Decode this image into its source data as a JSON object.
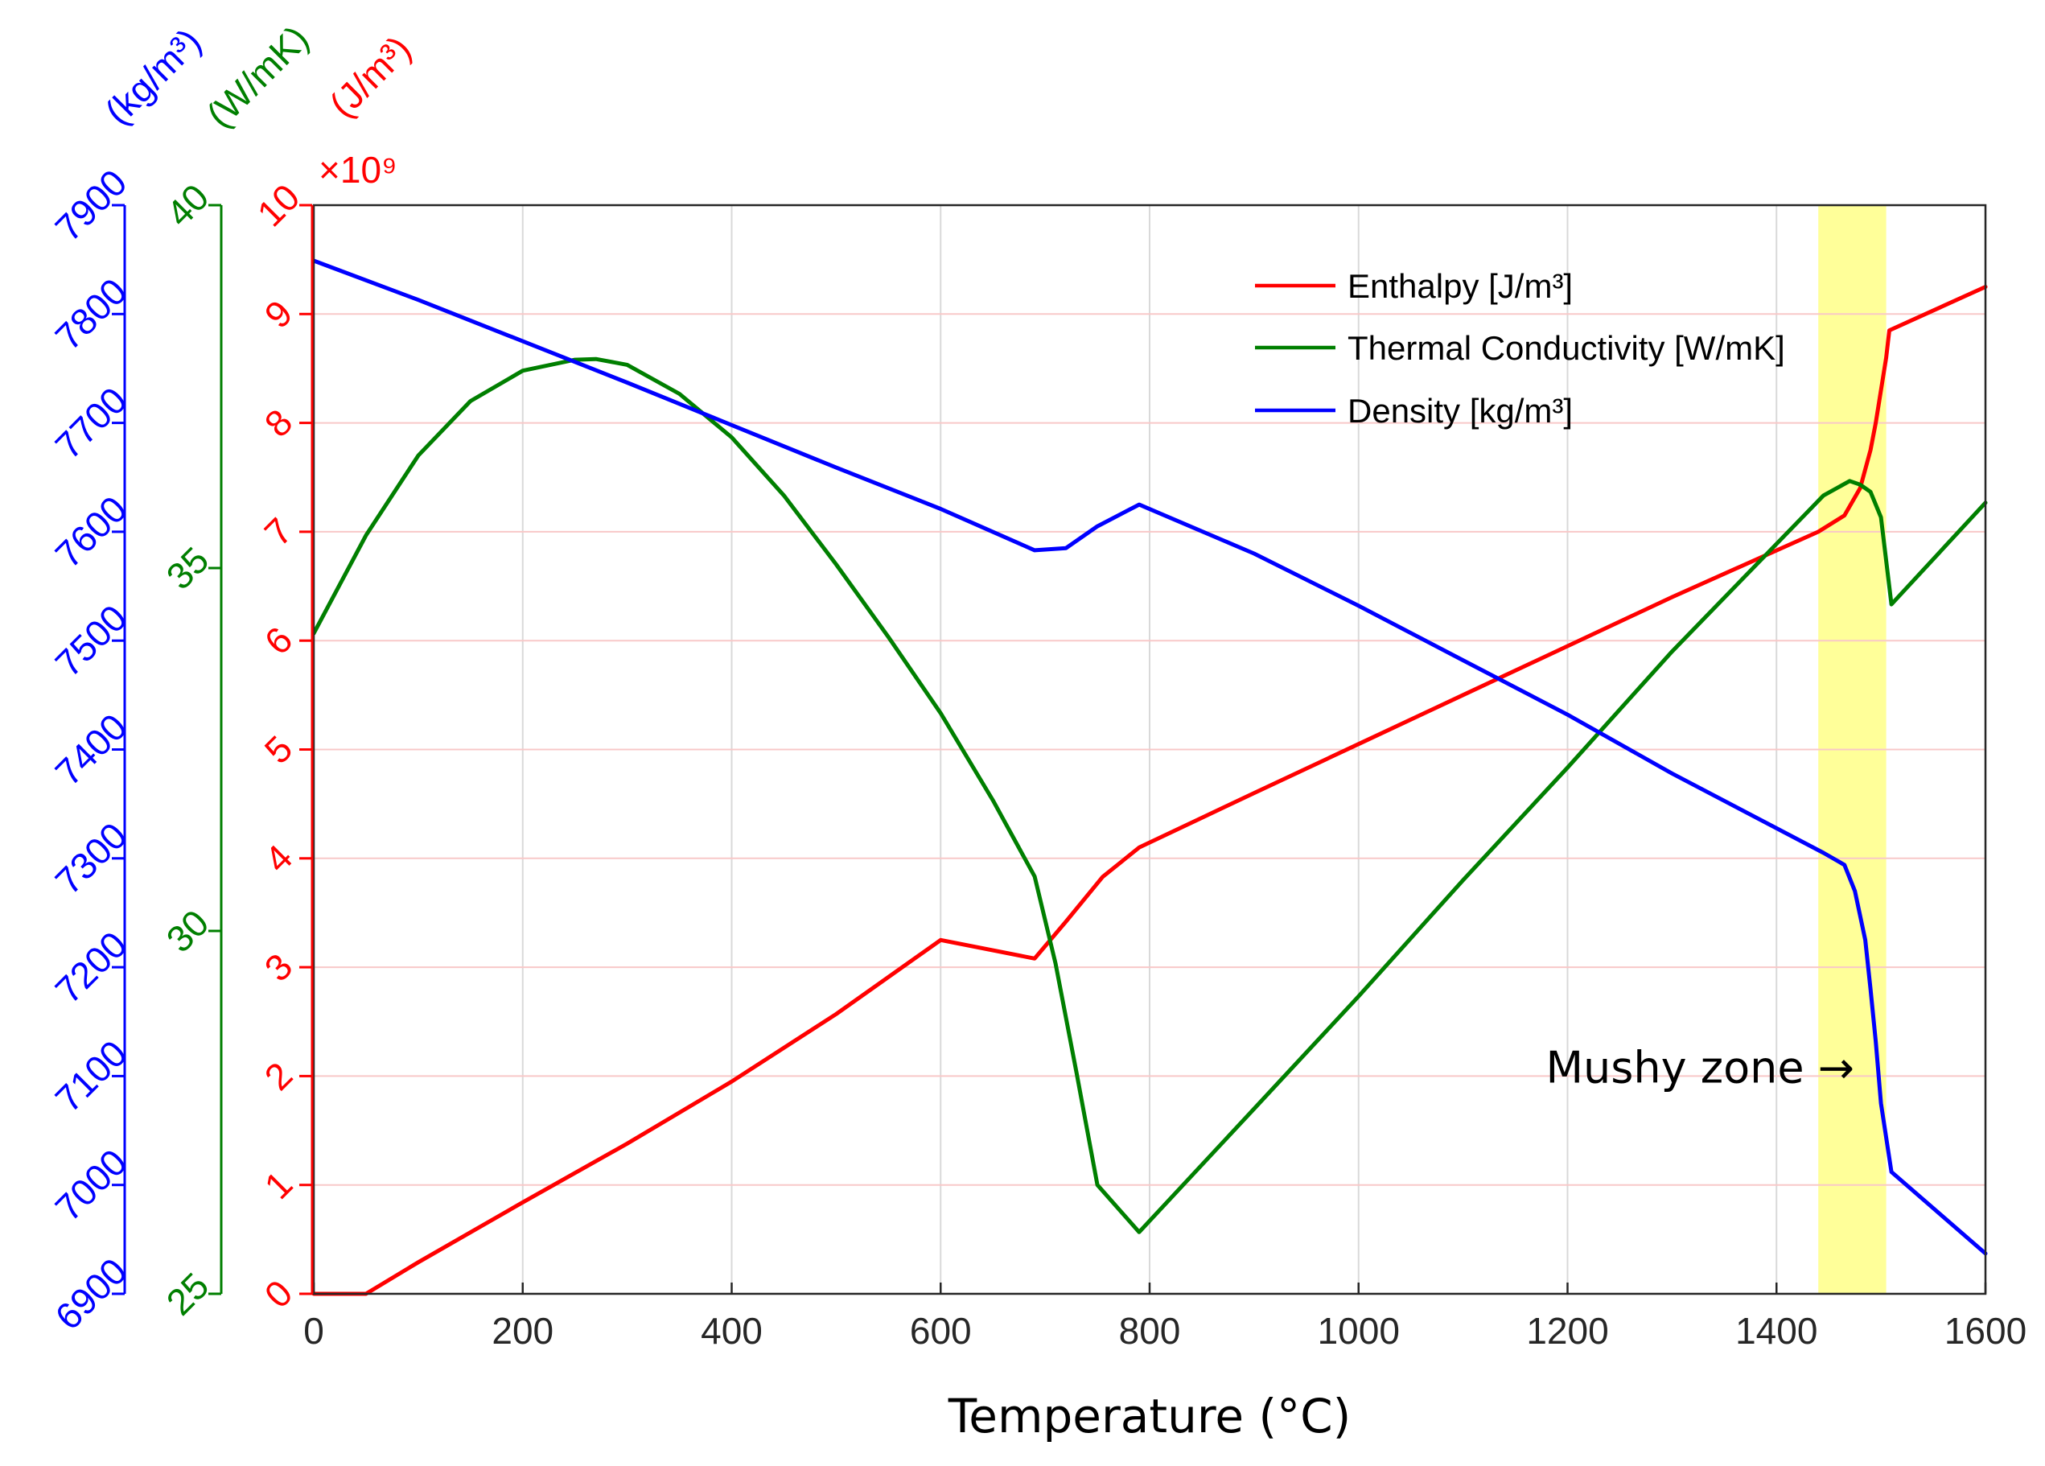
{
  "chart_data": {
    "type": "line",
    "title": "",
    "xlabel": "Temperature (°C)",
    "xlim": [
      0,
      1600
    ],
    "x_ticks": [
      0,
      200,
      400,
      600,
      800,
      1000,
      1200,
      1400,
      1600
    ],
    "grid": true,
    "axes": [
      {
        "id": "density",
        "unit_label": "(kg/m³)",
        "color": "#0000ff",
        "ylim": [
          6900,
          7900
        ],
        "ticks": [
          6900,
          7000,
          7100,
          7200,
          7300,
          7400,
          7500,
          7600,
          7700,
          7800,
          7900
        ]
      },
      {
        "id": "conductivity",
        "unit_label": "(W/mK)",
        "color": "#007f00",
        "ylim": [
          25,
          40
        ],
        "ticks": [
          25,
          30,
          35,
          40
        ]
      },
      {
        "id": "enthalpy",
        "unit_label": "(J/m³)",
        "exponent_label": "×10⁹",
        "color": "#ff0000",
        "ylim": [
          0,
          10
        ],
        "ticks": [
          0,
          1,
          2,
          3,
          4,
          5,
          6,
          7,
          8,
          9,
          10
        ]
      }
    ],
    "series": [
      {
        "name": "Enthalpy [J/m³]",
        "axis": "enthalpy",
        "color": "#ff0000",
        "x": [
          0,
          50,
          100,
          200,
          300,
          400,
          500,
          600,
          690,
          720,
          755,
          790,
          900,
          1000,
          1100,
          1200,
          1300,
          1440,
          1465,
          1480,
          1490,
          1495,
          1500,
          1505,
          1508,
          1600
        ],
        "y": [
          0,
          0,
          0.29,
          0.84,
          1.38,
          1.95,
          2.57,
          3.25,
          3.08,
          3.42,
          3.83,
          4.1,
          4.6,
          5.05,
          5.5,
          5.95,
          6.4,
          7.0,
          7.15,
          7.4,
          7.75,
          8.0,
          8.3,
          8.6,
          8.85,
          9.25
        ]
      },
      {
        "name": "Thermal Conductivity [W/mK]",
        "axis": "conductivity",
        "color": "#007f00",
        "x": [
          0,
          50,
          100,
          150,
          200,
          250,
          270,
          300,
          350,
          400,
          450,
          500,
          550,
          600,
          650,
          690,
          710,
          730,
          750,
          790,
          900,
          1000,
          1100,
          1200,
          1300,
          1445,
          1470,
          1480,
          1490,
          1500,
          1510,
          1600
        ],
        "y": [
          34.1,
          35.45,
          36.55,
          37.3,
          37.72,
          37.87,
          37.88,
          37.8,
          37.4,
          36.8,
          36.0,
          35.05,
          34.05,
          33.0,
          31.8,
          30.75,
          29.55,
          28.05,
          26.5,
          25.85,
          27.55,
          29.1,
          30.7,
          32.25,
          33.85,
          36.0,
          36.2,
          36.15,
          36.05,
          35.7,
          34.5,
          35.9
        ]
      },
      {
        "name": "Density [kg/m³]",
        "axis": "density",
        "color": "#0000ff",
        "x": [
          0,
          100,
          200,
          300,
          400,
          500,
          600,
          690,
          720,
          750,
          790,
          900,
          1000,
          1100,
          1200,
          1300,
          1445,
          1465,
          1475,
          1485,
          1490,
          1495,
          1500,
          1510,
          1600
        ],
        "y": [
          7849,
          7813,
          7775,
          7737,
          7698,
          7659,
          7621,
          7583,
          7585,
          7605,
          7625,
          7580,
          7532,
          7482,
          7432,
          7378,
          7305,
          7294,
          7270,
          7225,
          7180,
          7132,
          7075,
          7012,
          6937
        ]
      }
    ],
    "annotations": [
      {
        "text": "Mushy zone →",
        "x_range": [
          1440,
          1505
        ],
        "shade_color": "#ffff99"
      }
    ],
    "legend": "top-right"
  }
}
